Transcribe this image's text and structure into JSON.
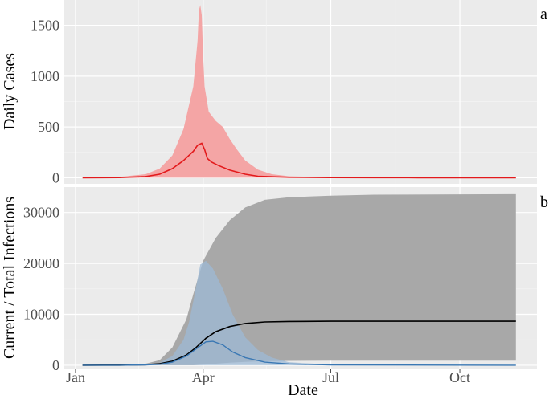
{
  "chart_data": [
    {
      "panel": "a",
      "type": "area",
      "ylabel": "Daily Cases",
      "ylim": [
        -60,
        1750
      ],
      "yticks": [
        0,
        500,
        1000,
        1500
      ],
      "ytick_labels": [
        "0",
        "500",
        "1000",
        "1500"
      ],
      "grid": true,
      "colors": {
        "band": "#f4a5a5",
        "line": "#e31a1c",
        "panel_bg": "#ebebeb"
      },
      "series": [
        {
          "kind": "band",
          "x": [
            "2020-01-06",
            "2020-02-01",
            "2020-02-20",
            "2020-03-01",
            "2020-03-10",
            "2020-03-18",
            "2020-03-25",
            "2020-03-28",
            "2020-03-29",
            "2020-03-30",
            "2020-03-31",
            "2020-04-01",
            "2020-04-02",
            "2020-04-05",
            "2020-04-10",
            "2020-04-15",
            "2020-04-20",
            "2020-04-25",
            "2020-05-01",
            "2020-05-10",
            "2020-05-20",
            "2020-06-01",
            "2020-07-01",
            "2020-08-01",
            "2020-09-01",
            "2020-10-01",
            "2020-11-10"
          ],
          "low": [
            0,
            0,
            0,
            0,
            0,
            0,
            0,
            0,
            0,
            0,
            0,
            0,
            0,
            0,
            0,
            0,
            0,
            0,
            0,
            0,
            0,
            0,
            0,
            0,
            0,
            0,
            0
          ],
          "high": [
            0,
            8,
            35,
            90,
            220,
            480,
            900,
            1350,
            1650,
            1700,
            1600,
            1200,
            900,
            650,
            560,
            500,
            380,
            280,
            170,
            80,
            35,
            15,
            5,
            2,
            1,
            0,
            0
          ]
        },
        {
          "kind": "line",
          "x": [
            "2020-01-06",
            "2020-02-01",
            "2020-02-20",
            "2020-03-01",
            "2020-03-10",
            "2020-03-18",
            "2020-03-25",
            "2020-03-28",
            "2020-03-31",
            "2020-04-02",
            "2020-04-04",
            "2020-04-07",
            "2020-04-12",
            "2020-04-20",
            "2020-05-01",
            "2020-05-10",
            "2020-06-01",
            "2020-07-01",
            "2020-08-01",
            "2020-09-01",
            "2020-10-01",
            "2020-11-10"
          ],
          "y": [
            0,
            2,
            12,
            35,
            90,
            170,
            260,
            320,
            340,
            280,
            190,
            155,
            120,
            75,
            35,
            15,
            5,
            2,
            1,
            0,
            0,
            0
          ]
        }
      ]
    },
    {
      "panel": "b",
      "type": "area",
      "xlabel": "Date",
      "ylabel": "Current / Total Infections",
      "ylim": [
        -800,
        35000
      ],
      "yticks": [
        0,
        10000,
        20000,
        30000
      ],
      "ytick_labels": [
        "0",
        "10000",
        "20000",
        "30000"
      ],
      "xticks": [
        "2020-01-01",
        "2020-04-01",
        "2020-07-01",
        "2020-10-01"
      ],
      "xtick_labels": [
        "Jan",
        "Apr",
        "Jul",
        "Oct"
      ],
      "grid": true,
      "colors": {
        "total_band": "#a8a8a8",
        "total_line": "#000000",
        "current_band": "#9dbad6",
        "current_line": "#3a78b4",
        "panel_bg": "#ebebeb"
      },
      "series": [
        {
          "kind": "band",
          "group": "total",
          "x": [
            "2020-01-06",
            "2020-02-01",
            "2020-02-20",
            "2020-03-01",
            "2020-03-10",
            "2020-03-20",
            "2020-03-25",
            "2020-04-01",
            "2020-04-10",
            "2020-04-20",
            "2020-05-01",
            "2020-05-15",
            "2020-06-01",
            "2020-07-01",
            "2020-08-01",
            "2020-11-10"
          ],
          "low": [
            0,
            0,
            0,
            0,
            0,
            0,
            0,
            100,
            300,
            500,
            650,
            800,
            850,
            900,
            900,
            900
          ],
          "high": [
            0,
            50,
            300,
            1000,
            3500,
            9000,
            14000,
            20500,
            25000,
            28500,
            31000,
            32500,
            33000,
            33300,
            33500,
            33600
          ]
        },
        {
          "kind": "band",
          "group": "current",
          "x": [
            "2020-01-06",
            "2020-02-01",
            "2020-02-20",
            "2020-03-01",
            "2020-03-10",
            "2020-03-18",
            "2020-03-22",
            "2020-03-26",
            "2020-03-30",
            "2020-04-03",
            "2020-04-08",
            "2020-04-15",
            "2020-04-22",
            "2020-05-01",
            "2020-05-10",
            "2020-05-20",
            "2020-06-01",
            "2020-07-01",
            "2020-11-10"
          ],
          "low": [
            0,
            0,
            0,
            0,
            0,
            0,
            0,
            0,
            0,
            0,
            0,
            0,
            0,
            0,
            0,
            0,
            0,
            0,
            0
          ],
          "high": [
            0,
            30,
            150,
            500,
            1800,
            5000,
            8500,
            14000,
            19800,
            20500,
            19000,
            15000,
            10000,
            5500,
            3000,
            1500,
            600,
            100,
            0
          ]
        },
        {
          "kind": "line",
          "group": "total",
          "x": [
            "2020-01-06",
            "2020-02-01",
            "2020-02-20",
            "2020-03-01",
            "2020-03-10",
            "2020-03-20",
            "2020-03-27",
            "2020-04-03",
            "2020-04-10",
            "2020-04-20",
            "2020-05-01",
            "2020-05-15",
            "2020-06-01",
            "2020-07-01",
            "2020-08-01",
            "2020-11-10"
          ],
          "y": [
            0,
            15,
            100,
            300,
            800,
            2000,
            3500,
            5300,
            6600,
            7600,
            8200,
            8500,
            8600,
            8650,
            8650,
            8650
          ]
        },
        {
          "kind": "line",
          "group": "current",
          "x": [
            "2020-01-06",
            "2020-02-01",
            "2020-02-20",
            "2020-03-01",
            "2020-03-10",
            "2020-03-20",
            "2020-03-27",
            "2020-04-03",
            "2020-04-08",
            "2020-04-15",
            "2020-04-22",
            "2020-05-01",
            "2020-05-15",
            "2020-06-01",
            "2020-07-01",
            "2020-11-10"
          ],
          "y": [
            0,
            10,
            60,
            200,
            600,
            1800,
            3200,
            4600,
            4700,
            4000,
            2600,
            1500,
            600,
            250,
            50,
            0
          ]
        }
      ]
    }
  ],
  "panel_labels": [
    "a",
    "b"
  ],
  "axis_titles": {
    "y_top": "Daily Cases",
    "y_bottom": "Current / Total Infections",
    "x": "Date"
  }
}
